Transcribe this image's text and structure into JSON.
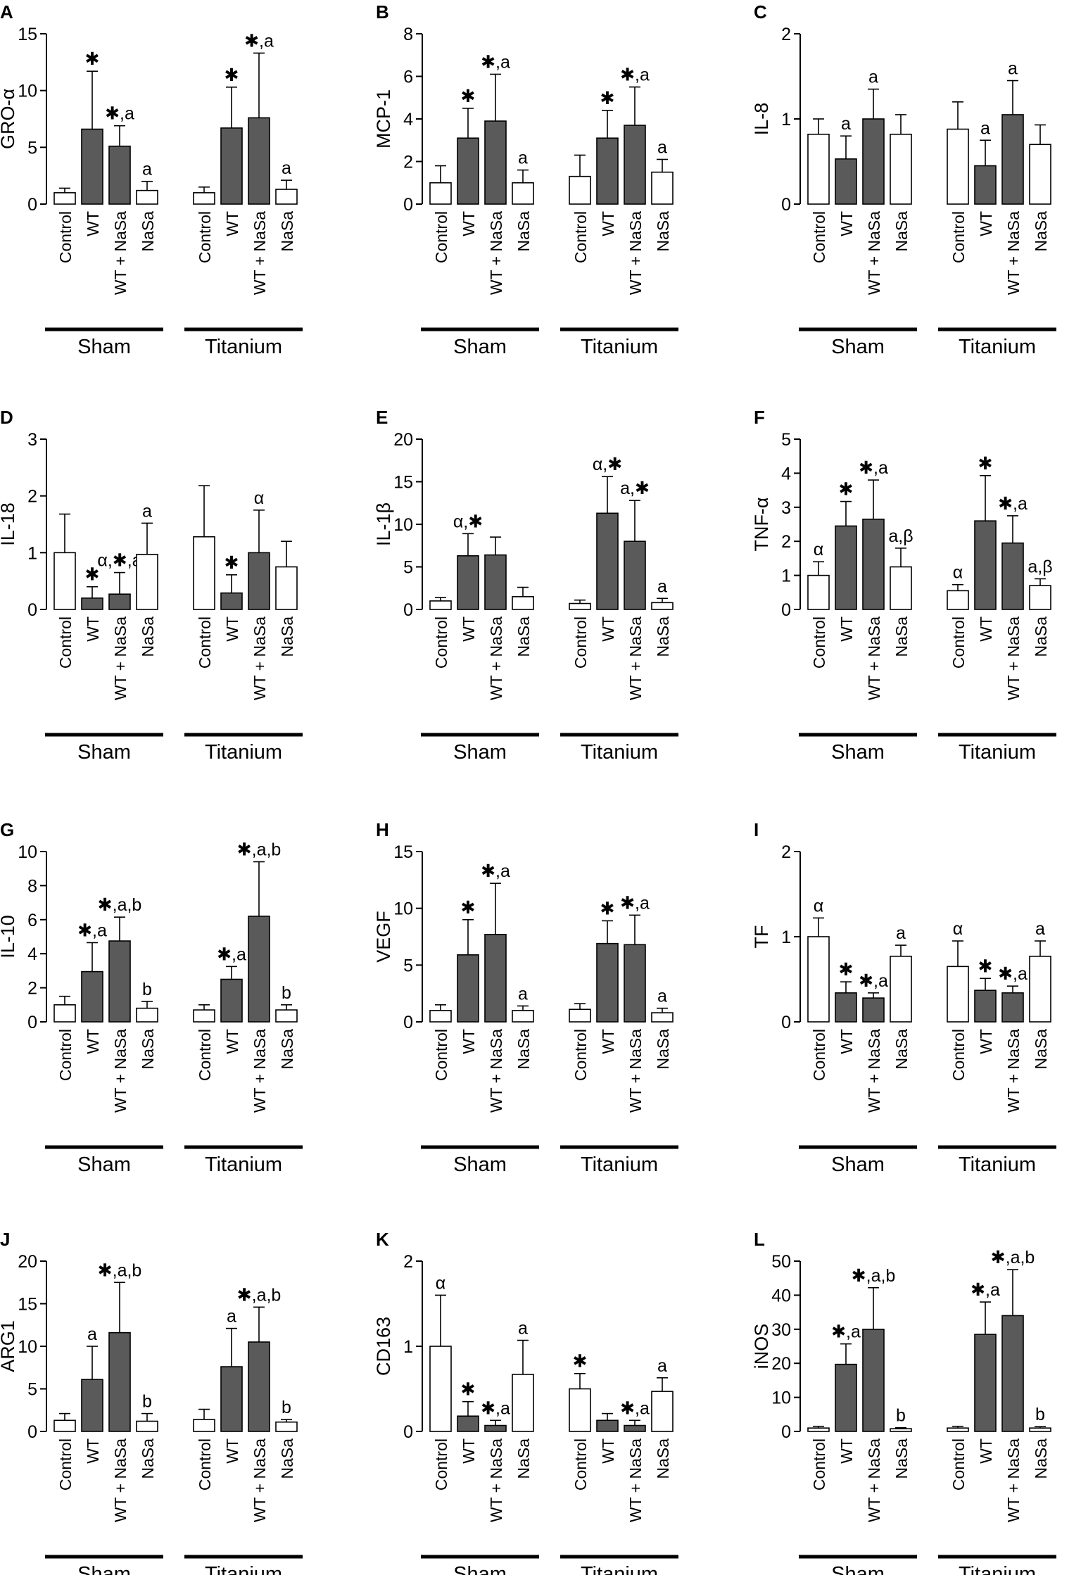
{
  "figure": {
    "categories": [
      "Control",
      "WT",
      "WT + NaSa",
      "NaSa"
    ],
    "groups": [
      "Sham",
      "Titanium"
    ],
    "colors": {
      "filled": "#5a5a5a",
      "open": "#ffffff",
      "stroke": "#000000"
    }
  },
  "chart_data": [
    {
      "type": "bar",
      "panel": "A",
      "ylabel": "GRO-α",
      "ylim": [
        0,
        15
      ],
      "yticks": [
        0,
        5,
        10,
        15
      ],
      "categories": [
        "Control",
        "WT",
        "WT + NaSa",
        "NaSa"
      ],
      "groups": [
        "Sham",
        "Titanium"
      ],
      "series": [
        {
          "name": "Sham",
          "values": [
            1.0,
            6.6,
            5.1,
            1.2
          ],
          "errors": [
            0.4,
            5.1,
            1.8,
            0.8
          ],
          "annotations": [
            "",
            "✱",
            "✱,a",
            "a"
          ]
        },
        {
          "name": "Titanium",
          "values": [
            1.0,
            6.7,
            7.6,
            1.3
          ],
          "errors": [
            0.5,
            3.6,
            5.7,
            0.8
          ],
          "annotations": [
            "",
            "✱",
            "✱,a",
            "a"
          ]
        }
      ]
    },
    {
      "type": "bar",
      "panel": "B",
      "ylabel": "MCP-1",
      "ylim": [
        0,
        8
      ],
      "yticks": [
        0,
        2,
        4,
        6,
        8
      ],
      "categories": [
        "Control",
        "WT",
        "WT + NaSa",
        "NaSa"
      ],
      "groups": [
        "Sham",
        "Titanium"
      ],
      "series": [
        {
          "name": "Sham",
          "values": [
            1.0,
            3.1,
            3.9,
            1.0
          ],
          "errors": [
            0.8,
            1.4,
            2.2,
            0.6
          ],
          "annotations": [
            "",
            "✱",
            "✱,a",
            "a"
          ]
        },
        {
          "name": "Titanium",
          "values": [
            1.3,
            3.1,
            3.7,
            1.5
          ],
          "errors": [
            1.0,
            1.3,
            1.8,
            0.6
          ],
          "annotations": [
            "",
            "✱",
            "✱,a",
            "a"
          ]
        }
      ]
    },
    {
      "type": "bar",
      "panel": "C",
      "ylabel": "IL-8",
      "ylim": [
        0,
        2
      ],
      "yticks": [
        0,
        1,
        2
      ],
      "categories": [
        "Control",
        "WT",
        "WT + NaSa",
        "NaSa"
      ],
      "groups": [
        "Sham",
        "Titanium"
      ],
      "series": [
        {
          "name": "Sham",
          "values": [
            0.82,
            0.53,
            1.0,
            0.82
          ],
          "errors": [
            0.18,
            0.27,
            0.35,
            0.23
          ],
          "annotations": [
            "",
            "a",
            "a",
            ""
          ]
        },
        {
          "name": "Titanium",
          "values": [
            0.88,
            0.45,
            1.05,
            0.7
          ],
          "errors": [
            0.32,
            0.3,
            0.4,
            0.23
          ],
          "annotations": [
            "",
            "a",
            "a",
            ""
          ]
        }
      ]
    },
    {
      "type": "bar",
      "panel": "D",
      "ylabel": "IL-18",
      "ylim": [
        0,
        3
      ],
      "yticks": [
        0,
        1,
        2,
        3
      ],
      "categories": [
        "Control",
        "WT",
        "WT + NaSa",
        "NaSa"
      ],
      "groups": [
        "Sham",
        "Titanium"
      ],
      "series": [
        {
          "name": "Sham",
          "values": [
            1.0,
            0.2,
            0.27,
            0.97
          ],
          "errors": [
            0.68,
            0.2,
            0.38,
            0.55
          ],
          "annotations": [
            "",
            "✱",
            "α,✱,a",
            "a"
          ]
        },
        {
          "name": "Titanium",
          "values": [
            1.28,
            0.29,
            1.0,
            0.75
          ],
          "errors": [
            0.9,
            0.32,
            0.75,
            0.45
          ],
          "annotations": [
            "",
            "✱",
            "α",
            ""
          ]
        }
      ]
    },
    {
      "type": "bar",
      "panel": "E",
      "ylabel": "IL-1β",
      "ylim": [
        0,
        20
      ],
      "yticks": [
        0,
        5,
        10,
        15,
        20
      ],
      "categories": [
        "Control",
        "WT",
        "WT + NaSa",
        "NaSa"
      ],
      "groups": [
        "Sham",
        "Titanium"
      ],
      "series": [
        {
          "name": "Sham",
          "values": [
            1.0,
            6.3,
            6.4,
            1.5
          ],
          "errors": [
            0.4,
            2.6,
            2.1,
            1.1
          ],
          "annotations": [
            "",
            "α,✱",
            "",
            ""
          ]
        },
        {
          "name": "Titanium",
          "values": [
            0.7,
            11.3,
            8.0,
            0.8
          ],
          "errors": [
            0.4,
            4.3,
            4.8,
            0.5
          ],
          "annotations": [
            "",
            "α,✱",
            "a,✱",
            "a"
          ]
        }
      ]
    },
    {
      "type": "bar",
      "panel": "F",
      "ylabel": "TNF-α",
      "ylim": [
        0,
        5
      ],
      "yticks": [
        0,
        1,
        2,
        3,
        4,
        5
      ],
      "categories": [
        "Control",
        "WT",
        "WT + NaSa",
        "NaSa"
      ],
      "groups": [
        "Sham",
        "Titanium"
      ],
      "series": [
        {
          "name": "Sham",
          "values": [
            1.0,
            2.45,
            2.65,
            1.25
          ],
          "errors": [
            0.4,
            0.72,
            1.15,
            0.55
          ],
          "annotations": [
            "α",
            "✱",
            "✱,a",
            "a,β"
          ]
        },
        {
          "name": "Titanium",
          "values": [
            0.55,
            2.6,
            1.95,
            0.7
          ],
          "errors": [
            0.18,
            1.33,
            0.8,
            0.2
          ],
          "annotations": [
            "α",
            "✱",
            "✱,a",
            "a,β"
          ]
        }
      ]
    },
    {
      "type": "bar",
      "panel": "G",
      "ylabel": "IL-10",
      "ylim": [
        0,
        10
      ],
      "yticks": [
        0,
        2,
        4,
        6,
        8,
        10
      ],
      "categories": [
        "Control",
        "WT",
        "WT + NaSa",
        "NaSa"
      ],
      "groups": [
        "Sham",
        "Titanium"
      ],
      "series": [
        {
          "name": "Sham",
          "values": [
            1.0,
            2.95,
            4.75,
            0.8
          ],
          "errors": [
            0.5,
            1.7,
            1.4,
            0.4
          ],
          "annotations": [
            "",
            "✱,a",
            "✱,a,b",
            "b"
          ]
        },
        {
          "name": "Titanium",
          "values": [
            0.7,
            2.5,
            6.2,
            0.7
          ],
          "errors": [
            0.3,
            0.75,
            3.2,
            0.3
          ],
          "annotations": [
            "",
            "✱,a",
            "✱,a,b",
            "b"
          ]
        }
      ]
    },
    {
      "type": "bar",
      "panel": "H",
      "ylabel": "VEGF",
      "ylim": [
        0,
        15
      ],
      "yticks": [
        0,
        5,
        10,
        15
      ],
      "categories": [
        "Control",
        "WT",
        "WT + NaSa",
        "NaSa"
      ],
      "groups": [
        "Sham",
        "Titanium"
      ],
      "series": [
        {
          "name": "Sham",
          "values": [
            1.0,
            5.9,
            7.7,
            1.0
          ],
          "errors": [
            0.5,
            3.1,
            4.5,
            0.4
          ],
          "annotations": [
            "",
            "✱",
            "✱,a",
            "a"
          ]
        },
        {
          "name": "Titanium",
          "values": [
            1.1,
            6.9,
            6.8,
            0.8
          ],
          "errors": [
            0.5,
            2.0,
            2.6,
            0.4
          ],
          "annotations": [
            "",
            "✱",
            "✱,a",
            "a"
          ]
        }
      ]
    },
    {
      "type": "bar",
      "panel": "I",
      "ylabel": "TF",
      "ylim": [
        0,
        2
      ],
      "yticks": [
        0,
        1,
        2
      ],
      "categories": [
        "Control",
        "WT",
        "WT + NaSa",
        "NaSa"
      ],
      "groups": [
        "Sham",
        "Titanium"
      ],
      "series": [
        {
          "name": "Sham",
          "values": [
            1.0,
            0.34,
            0.28,
            0.77
          ],
          "errors": [
            0.22,
            0.13,
            0.06,
            0.13
          ],
          "annotations": [
            "α",
            "✱",
            "✱,a",
            "a"
          ]
        },
        {
          "name": "Titanium",
          "values": [
            0.65,
            0.37,
            0.34,
            0.77
          ],
          "errors": [
            0.3,
            0.14,
            0.08,
            0.18
          ],
          "annotations": [
            "α",
            "✱",
            "✱,a",
            "a"
          ]
        }
      ]
    },
    {
      "type": "bar",
      "panel": "J",
      "ylabel": "ARG1",
      "ylim": [
        0,
        20
      ],
      "yticks": [
        0,
        5,
        10,
        15,
        20
      ],
      "categories": [
        "Control",
        "WT",
        "WT + NaSa",
        "NaSa"
      ],
      "groups": [
        "Sham",
        "Titanium"
      ],
      "series": [
        {
          "name": "Sham",
          "values": [
            1.3,
            6.1,
            11.6,
            1.2
          ],
          "errors": [
            0.8,
            3.9,
            5.9,
            0.9
          ],
          "annotations": [
            "",
            "a",
            "✱,a,b",
            "b"
          ]
        },
        {
          "name": "Titanium",
          "values": [
            1.4,
            7.6,
            10.5,
            1.1
          ],
          "errors": [
            1.2,
            4.5,
            4.1,
            0.3
          ],
          "annotations": [
            "",
            "a",
            "✱,a,b",
            "b"
          ]
        }
      ]
    },
    {
      "type": "bar",
      "panel": "K",
      "ylabel": "CD163",
      "ylim": [
        0,
        2
      ],
      "yticks": [
        0,
        1,
        2
      ],
      "categories": [
        "Control",
        "WT",
        "WT + NaSa",
        "NaSa"
      ],
      "groups": [
        "Sham",
        "Titanium"
      ],
      "series": [
        {
          "name": "Sham",
          "values": [
            1.0,
            0.18,
            0.07,
            0.67
          ],
          "errors": [
            0.6,
            0.17,
            0.06,
            0.4
          ],
          "annotations": [
            "α",
            "✱",
            "✱,a",
            "a"
          ]
        },
        {
          "name": "Titanium",
          "values": [
            0.5,
            0.13,
            0.07,
            0.47
          ],
          "errors": [
            0.18,
            0.08,
            0.06,
            0.16
          ],
          "annotations": [
            "✱",
            "",
            "✱,a",
            "a"
          ]
        }
      ]
    },
    {
      "type": "bar",
      "panel": "L",
      "ylabel": "iNOS",
      "ylim": [
        0,
        50
      ],
      "yticks": [
        0,
        10,
        20,
        30,
        40,
        50
      ],
      "categories": [
        "Control",
        "WT",
        "WT + NaSa",
        "NaSa"
      ],
      "groups": [
        "Sham",
        "Titanium"
      ],
      "series": [
        {
          "name": "Sham",
          "values": [
            1.0,
            19.7,
            30.0,
            0.8
          ],
          "errors": [
            0.5,
            6.0,
            12.2,
            0.3
          ],
          "annotations": [
            "",
            "✱,a",
            "✱,a,b",
            "b"
          ]
        },
        {
          "name": "Titanium",
          "values": [
            1.0,
            28.5,
            34.0,
            1.0
          ],
          "errors": [
            0.5,
            9.5,
            13.5,
            0.4
          ],
          "annotations": [
            "",
            "✱,a",
            "✱,a,b",
            "b"
          ]
        }
      ]
    }
  ]
}
